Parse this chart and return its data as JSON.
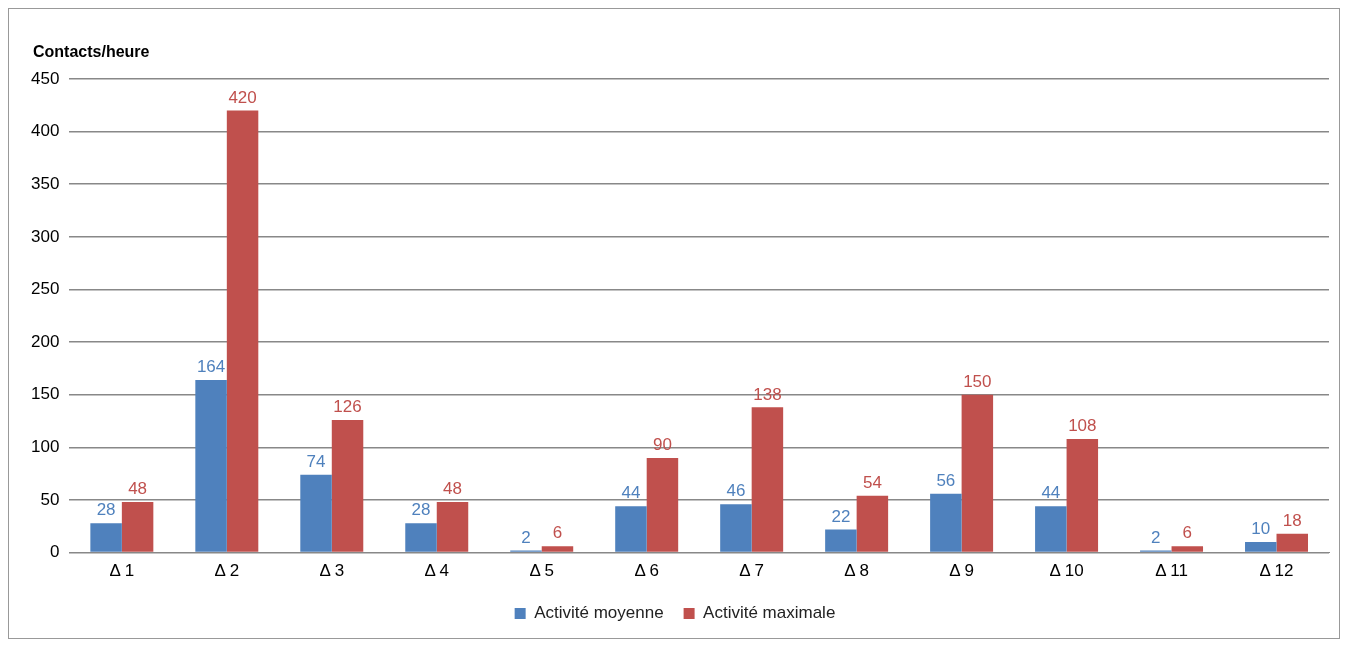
{
  "chart_data": {
    "type": "bar",
    "ylabel": "Contacts/heure",
    "categories": [
      "Δ 1",
      "Δ 2",
      "Δ 3",
      "Δ 4",
      "Δ 5",
      "Δ 6",
      "Δ 7",
      "Δ 8",
      "Δ 9",
      "Δ 10",
      "Δ 11",
      "Δ 12"
    ],
    "series": [
      {
        "name": "Activité moyenne",
        "color": "#4f81bd",
        "values": [
          28,
          164,
          74,
          28,
          2,
          44,
          46,
          22,
          56,
          44,
          2,
          10
        ]
      },
      {
        "name": "Activité maximale",
        "color": "#c0504d",
        "values": [
          48,
          420,
          126,
          48,
          6,
          90,
          138,
          54,
          150,
          108,
          6,
          18
        ]
      }
    ],
    "ylim": [
      0,
      450
    ],
    "yticks": [
      0,
      50,
      100,
      150,
      200,
      250,
      300,
      350,
      400,
      450
    ],
    "grid": "y",
    "legend": "bottom",
    "data_labels": true
  }
}
